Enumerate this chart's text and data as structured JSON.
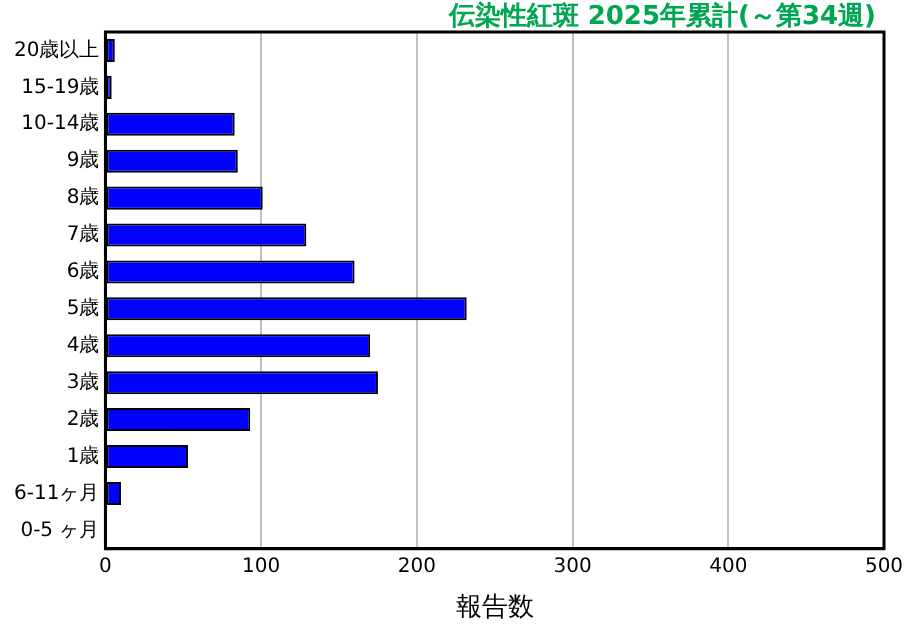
{
  "chart_data": {
    "type": "bar",
    "orientation": "horizontal",
    "title": "伝染性紅斑 2025年累計(～第34週)",
    "xlabel": "報告数",
    "categories": [
      "20歳以上",
      "15-19歳",
      "10-14歳",
      "9歳",
      "8歳",
      "7歳",
      "6歳",
      "5歳",
      "4歳",
      "3歳",
      "2歳",
      "1歳",
      "6-11ヶ月",
      "0-5 ヶ月"
    ],
    "values": [
      6,
      4,
      83,
      85,
      101,
      129,
      160,
      232,
      170,
      175,
      93,
      53,
      10,
      0
    ],
    "color": "#0000ff",
    "xlim": [
      0,
      500
    ],
    "xticks": [
      0,
      100,
      200,
      300,
      400,
      500
    ],
    "grid": "x",
    "legend": false
  }
}
